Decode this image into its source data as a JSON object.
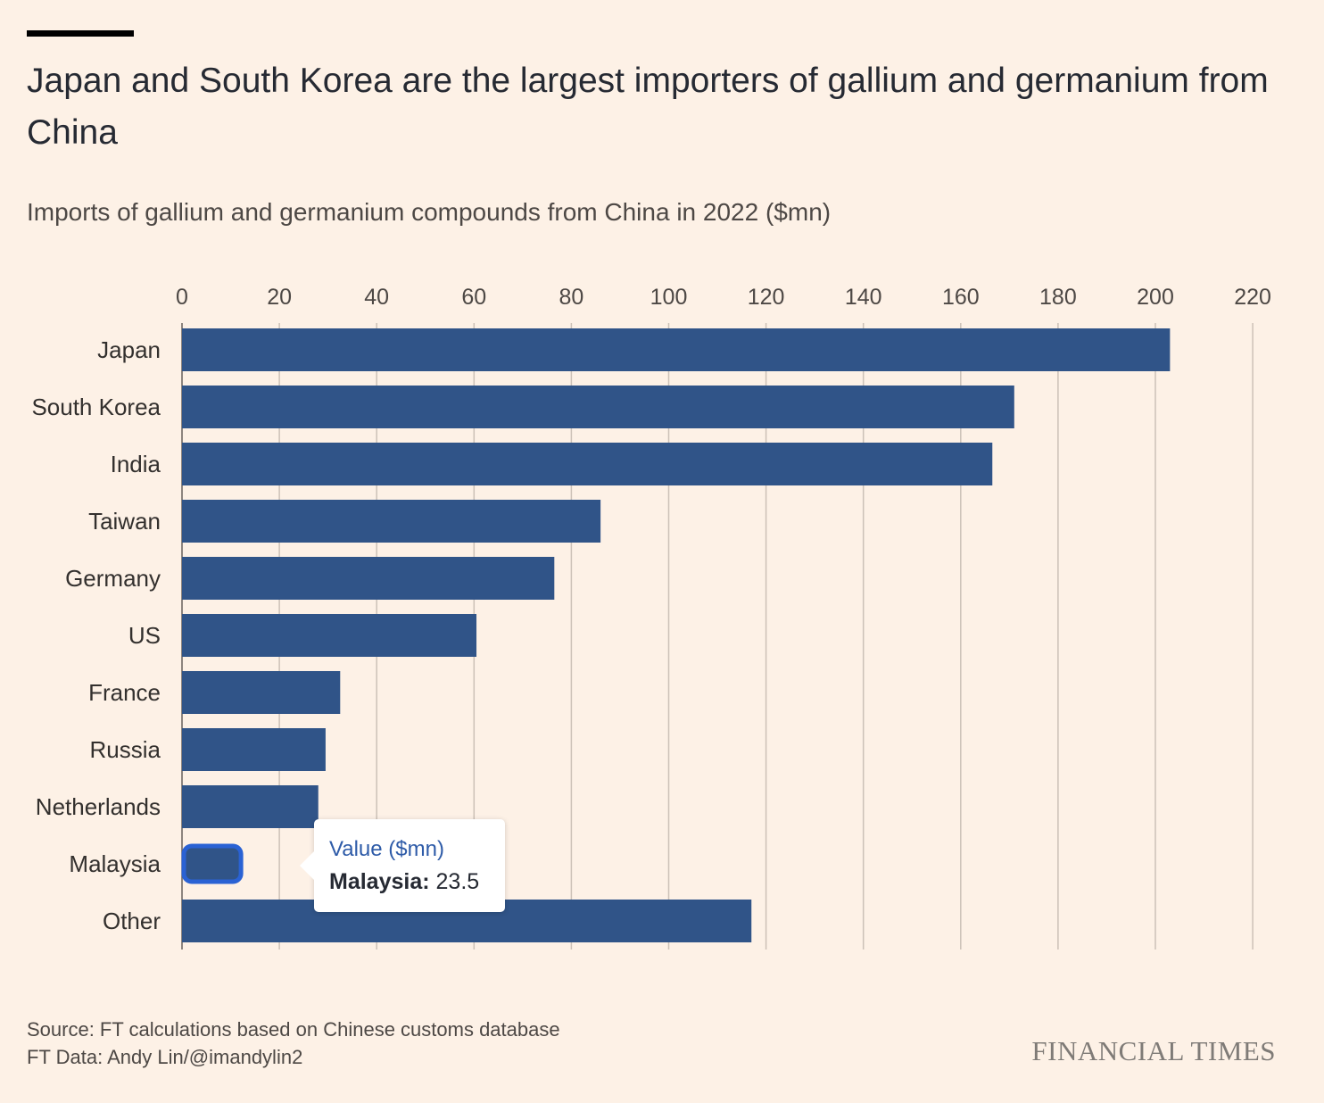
{
  "header": {
    "title": "Japan and South Korea are the largest importers of gallium and germanium from China",
    "subtitle": "Imports of gallium and germanium compounds from China in 2022 ($mn)"
  },
  "footer": {
    "source": "Source: FT calculations based on Chinese customs database",
    "credit": "FT Data: Andy Lin/@imandylin2",
    "brand": "FINANCIAL TIMES"
  },
  "tooltip": {
    "heading": "Value ($mn)",
    "category": "Malaysia:",
    "value": "23.5"
  },
  "colors": {
    "bar": "#305488",
    "highlight_border": "#2a62d4",
    "grid": "#ccc1b7",
    "background": "#fdf1e6"
  },
  "chart_data": {
    "type": "bar",
    "orientation": "horizontal",
    "categories": [
      "Japan",
      "South Korea",
      "India",
      "Taiwan",
      "Germany",
      "US",
      "France",
      "Russia",
      "Netherlands",
      "Malaysia",
      "Other"
    ],
    "values": [
      203,
      171,
      166.5,
      86,
      76.5,
      60.5,
      32.5,
      29.5,
      28,
      23.5,
      117
    ],
    "highlighted": "Malaysia",
    "xlim": [
      0,
      220
    ],
    "xticks": [
      0,
      20,
      40,
      60,
      80,
      100,
      120,
      140,
      160,
      180,
      200,
      220
    ],
    "grid": true,
    "axis_position": "top"
  }
}
